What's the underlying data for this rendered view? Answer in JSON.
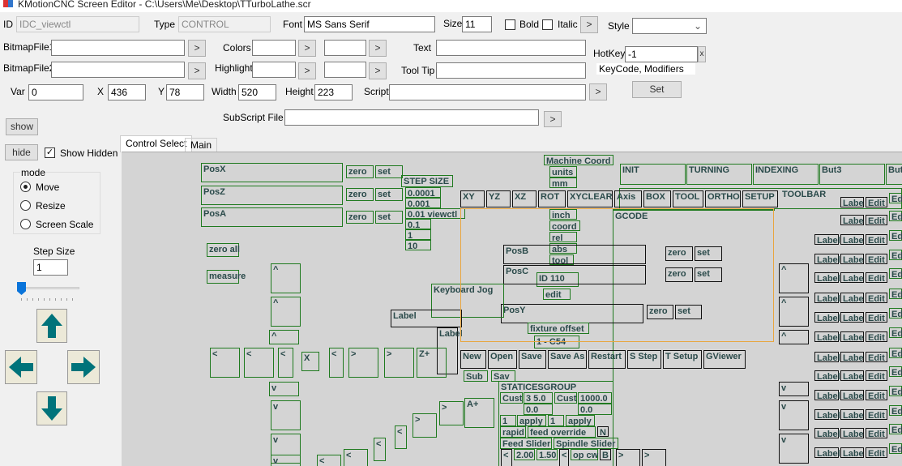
{
  "window": {
    "title": "KMotionCNC Screen Editor - C:\\Users\\Me\\Desktop\\TTurboLathe.scr"
  },
  "props": {
    "id_label": "ID",
    "id_value": "IDC_viewctl",
    "type_label": "Type",
    "type_value": "CONTROL",
    "font_label": "Font",
    "font_value": "MS Sans Serif",
    "size_label": "Size",
    "size_value": "11",
    "bold_label": "Bold",
    "italic_label": "Italic",
    "style_label": "Style",
    "style_value": "",
    "bitmap1_label": "BitmapFile1",
    "bitmap2_label": "BitmapFile2",
    "colors_label": "Colors",
    "highlight_label": "Highlight",
    "text_label": "Text",
    "tooltip_label": "Tool Tip",
    "hotkey_label": "HotKey",
    "hotkey_value": "-1",
    "hotkey_clear": "x",
    "hotkey_hint": "KeyCode, Modifiers",
    "set_label": "Set",
    "var_label": "Var",
    "var_value": "0",
    "x_label": "X",
    "x_value": "436",
    "y_label": "Y",
    "y_value": "78",
    "width_label": "Width",
    "width_value": "520",
    "height_label": "Height",
    "height_value": "223",
    "script_label": "Script",
    "subscript_label": "SubScript File",
    "browse": ">"
  },
  "left": {
    "show": "show",
    "hide": "hide",
    "show_hidden": "Show Hidden",
    "show_hidden_checked": true,
    "mode_title": "mode",
    "modes": [
      "Move",
      "Resize",
      "Screen Scale"
    ],
    "mode_selected": "Move",
    "step_size_label": "Step Size",
    "step_size_value": "1",
    "slider_value": 0
  },
  "tabs": [
    "Control Select",
    "Main"
  ],
  "canvas": {
    "controls": [
      "PosX",
      "zero",
      "set",
      "PosZ",
      "zero",
      "set",
      "PosA",
      "zero",
      "set",
      "zero all",
      "measure",
      "STEP SIZE",
      "0.0001",
      "0.001",
      "0.01 viewctl",
      "0.1",
      "1",
      "10",
      "Machine Coord",
      "units",
      "mm",
      "inch",
      "coord",
      "rel",
      "abs",
      "tool",
      "ID 110",
      "edit",
      "INIT",
      "TURNING",
      "INDEXING",
      "But3",
      "But",
      "TOOLBAR",
      "XY",
      "YZ",
      "XZ",
      "ROT",
      "XYCLEAR",
      "Axis",
      "BOX",
      "TOOL",
      "ORTHO",
      "SETUP",
      "GCODE",
      "PosB",
      "PosC",
      "zero",
      "set",
      "zero",
      "set",
      "PosY",
      "zero",
      "set",
      "Keyboard Jog",
      "Label",
      "Label",
      "fixture offset",
      "1 - C54",
      "New",
      "Open",
      "Save",
      "Save As",
      "Restart",
      "S Step",
      "T Setup",
      "GViewer",
      "Sub",
      "Sav",
      "STATICESGROUP",
      "Cust",
      "3  5.0",
      "Cust",
      "1000.0",
      "0.0",
      "0.0",
      "1",
      "apply",
      "1",
      "apply",
      "rapid",
      "feed override",
      "N",
      "Feed Slider",
      "Spindle Slider",
      "op cw",
      "B",
      "2.00",
      "1.50",
      "<",
      "<",
      ">",
      ">",
      "^",
      "^",
      "^",
      "<",
      "<",
      "<",
      "X",
      "<",
      ">",
      ">",
      "Z+",
      "v",
      "v",
      "v",
      "v",
      ">",
      ">",
      "<",
      "<",
      "<",
      "<",
      "A+",
      "^",
      "^",
      "^",
      "v",
      "v",
      "v"
    ],
    "grid": {
      "label": "Label",
      "labe": "Labe",
      "edit": "Edit",
      "ed": "Ed"
    }
  },
  "colors": {
    "control_border": "#1f7a1f",
    "selected_border": "#e8a640",
    "canvas_bg": "#d4d4d4",
    "arrow_fill": "#00737a"
  }
}
